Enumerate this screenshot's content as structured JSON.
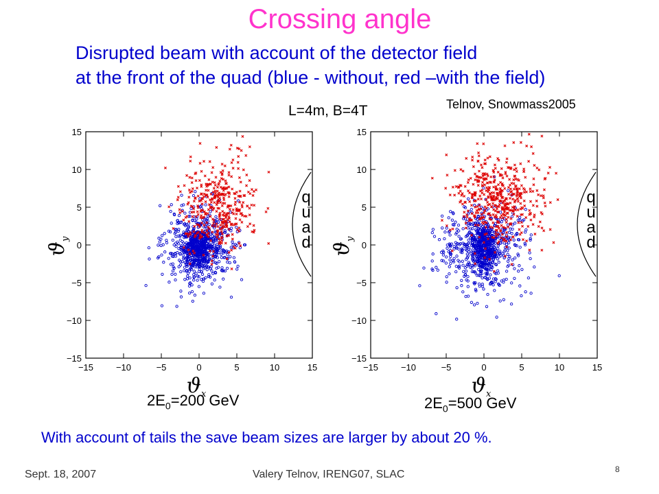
{
  "slide": {
    "title": "Crossing angle",
    "subtitle_line1": "Disrupted beam with account of the detector field",
    "subtitle_line2": "at the front of the quad (blue - without, red –with the field)",
    "params": "L=4m, B=4T",
    "credit": "Telnov, Snowmass2005",
    "note": "With account of tails the save beam sizes are larger by about 20 %.",
    "footer_date": "Sept. 18, 2007",
    "footer_author": "Valery Telnov, IRENG07, SLAC",
    "page_number": "8",
    "caption1": {
      "pre": "2E",
      "sub": "0",
      "post": "=200 GeV"
    },
    "caption2": {
      "pre": "2E",
      "sub": "0",
      "post": "=500 GeV"
    }
  },
  "chart_data": [
    {
      "type": "scatter",
      "xlabel": "ϑx",
      "ylabel": "ϑy",
      "xlim": [
        -15,
        15
      ],
      "ylim": [
        -15,
        15
      ],
      "ticks": [
        -15,
        -10,
        -5,
        0,
        5,
        10,
        15
      ],
      "annotation": "quad",
      "series": [
        {
          "color": "#0000cc",
          "marker": "circle",
          "center": [
            0.0,
            -0.3
          ],
          "sigma": [
            2.6,
            2.7
          ],
          "count": 900,
          "core_sigma": [
            0.9,
            1.4
          ]
        },
        {
          "color": "#dd0000",
          "marker": "cross",
          "center": [
            2.4,
            5.0
          ],
          "sigma": [
            2.5,
            3.2
          ],
          "count": 400,
          "ylim": [
            -4,
            15
          ]
        }
      ]
    },
    {
      "type": "scatter",
      "xlabel": "ϑx",
      "ylabel": "ϑy",
      "xlim": [
        -15,
        15
      ],
      "ylim": [
        -15,
        15
      ],
      "ticks": [
        -15,
        -10,
        -5,
        0,
        5,
        10,
        15
      ],
      "annotation": "quad",
      "series": [
        {
          "color": "#0000cc",
          "marker": "circle",
          "center": [
            0.0,
            -0.5
          ],
          "sigma": [
            3.0,
            3.2
          ],
          "count": 900,
          "core_sigma": [
            0.9,
            1.5
          ]
        },
        {
          "color": "#dd0000",
          "marker": "cross",
          "center": [
            2.0,
            6.0
          ],
          "sigma": [
            3.0,
            3.3
          ],
          "count": 500,
          "ylim": [
            -4,
            15
          ]
        }
      ]
    }
  ]
}
